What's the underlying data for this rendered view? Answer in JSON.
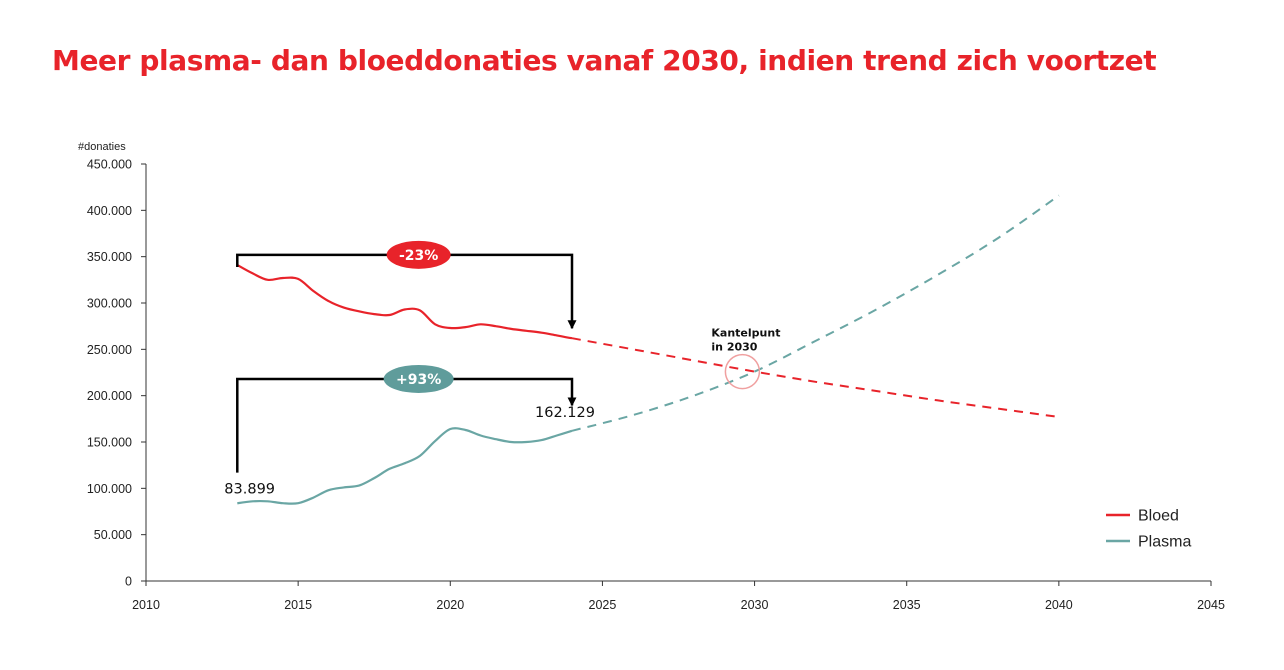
{
  "chart_data": {
    "type": "line",
    "title": "Meer plasma- dan bloeddonaties vanaf 2030, indien trend zich voortzet",
    "ylabel": "#donaties",
    "xlabel": "",
    "xlim": [
      2010,
      2045
    ],
    "ylim": [
      0,
      450000
    ],
    "x_ticks": [
      2010,
      2015,
      2020,
      2025,
      2030,
      2035,
      2040,
      2045
    ],
    "y_ticks": [
      0,
      50000,
      100000,
      150000,
      200000,
      250000,
      300000,
      350000,
      400000,
      450000
    ],
    "x_tick_labels": [
      "2010",
      "2015",
      "2020",
      "2025",
      "2030",
      "2035",
      "2040",
      "2045"
    ],
    "y_tick_labels": [
      "0",
      "50.000",
      "100.000",
      "150.000",
      "200.000",
      "250.000",
      "300.000",
      "350.000",
      "400.000",
      "450.000"
    ],
    "grid": false,
    "legend_position": "bottom-right",
    "series": [
      {
        "name": "Bloed",
        "color": "#e8232a",
        "x": [
          2013,
          2013.5,
          2014,
          2014.5,
          2015,
          2015.5,
          2016,
          2016.5,
          2017,
          2017.5,
          2018,
          2018.5,
          2019,
          2019.5,
          2020,
          2020.5,
          2021,
          2021.5,
          2022,
          2022.5,
          2023,
          2023.5,
          2024
        ],
        "y": [
          341000,
          332000,
          325000,
          327000,
          326000,
          313000,
          302000,
          295000,
          291000,
          288000,
          287000,
          293000,
          292000,
          277000,
          273000,
          274000,
          277000,
          275000,
          272000,
          270000,
          268000,
          265000,
          262000
        ]
      },
      {
        "name": "Plasma",
        "color": "#6aa6a4",
        "x": [
          2013,
          2013.5,
          2014,
          2014.5,
          2015,
          2015.5,
          2016,
          2016.5,
          2017,
          2017.5,
          2018,
          2018.5,
          2019,
          2019.5,
          2020,
          2020.5,
          2021,
          2021.5,
          2022,
          2022.5,
          2023,
          2023.5,
          2024
        ],
        "y": [
          83899,
          86000,
          86000,
          84000,
          84000,
          90000,
          98000,
          101000,
          103000,
          111000,
          121000,
          127000,
          135000,
          151000,
          164000,
          163000,
          157000,
          153000,
          150000,
          150000,
          152000,
          157000,
          162129
        ]
      }
    ],
    "projections": [
      {
        "series": "Bloed",
        "x": [
          2024,
          2026,
          2028,
          2030,
          2032,
          2034,
          2036,
          2038,
          2040
        ],
        "y": [
          262000,
          250000,
          238000,
          226000,
          215000,
          205000,
          195000,
          186000,
          177000
        ]
      },
      {
        "series": "Plasma",
        "x": [
          2024,
          2026,
          2028,
          2030,
          2032,
          2034,
          2036,
          2038,
          2040
        ],
        "y": [
          162129,
          179000,
          200000,
          226000,
          259000,
          293000,
          330000,
          370000,
          416000
        ]
      }
    ],
    "annotations": {
      "bloed_change": "-23%",
      "plasma_change": "+93%",
      "plasma_start_label": "83.899",
      "plasma_end_label": "162.129",
      "kantelpunt_line1": "Kantelpunt",
      "kantelpunt_line2": "in 2030",
      "bloed_bracket": {
        "x_start": 2013,
        "x_end": 2024,
        "y_top": 352000,
        "y_start": 341000,
        "y_end": 262000
      },
      "plasma_bracket": {
        "x_start": 2013,
        "x_end": 2024,
        "y_top": 218000,
        "y_start": 117000,
        "y_end": 196000
      },
      "kantelpunt": {
        "x": 2029.6,
        "y": 226000
      }
    }
  }
}
